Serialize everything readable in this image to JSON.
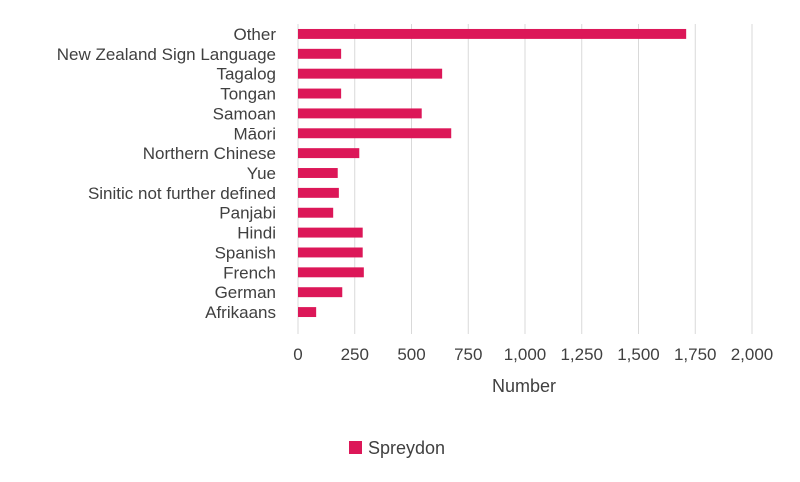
{
  "chart_data": {
    "type": "bar",
    "orientation": "horizontal",
    "title": "",
    "xlabel": "Number",
    "ylabel": "",
    "xlim": [
      0,
      2000
    ],
    "x_ticks": [
      0,
      250,
      500,
      750,
      1000,
      1250,
      1500,
      1750,
      2000
    ],
    "x_tick_labels": [
      "0",
      "250",
      "500",
      "750",
      "1,000",
      "1,250",
      "1,500",
      "1,750",
      "2,000"
    ],
    "grid": "vertical",
    "legend_position": "bottom",
    "categories": [
      "Other",
      "New Zealand Sign Language",
      "Tagalog",
      "Tongan",
      "Samoan",
      "Māori",
      "Northern Chinese",
      "Yue",
      "Sinitic not further defined",
      "Panjabi",
      "Hindi",
      "Spanish",
      "French",
      "German",
      "Afrikaans"
    ],
    "series": [
      {
        "name": "Spreydon",
        "color": "#DC1758",
        "values": [
          1710,
          190,
          635,
          190,
          545,
          675,
          270,
          175,
          180,
          155,
          285,
          285,
          290,
          195,
          80
        ]
      }
    ]
  }
}
